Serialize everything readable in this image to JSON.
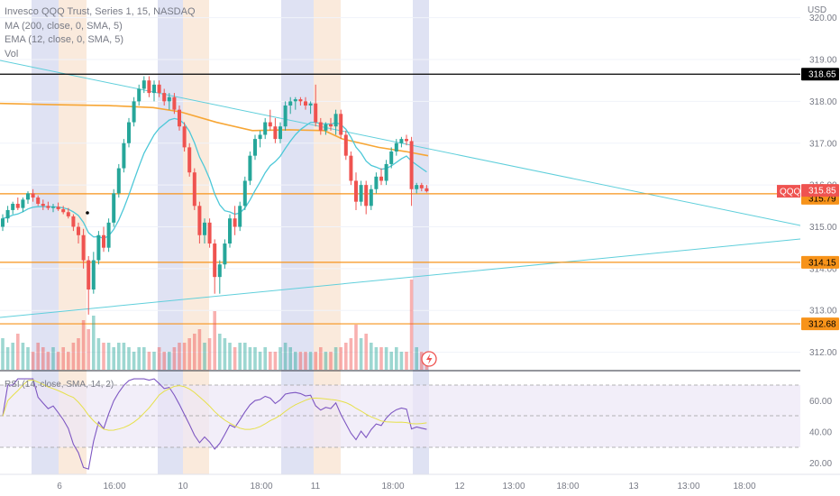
{
  "legend": {
    "title": "Invesco QQQ Trust, Series 1, 15, NASDAQ",
    "ma": "MA (200, close, 0, SMA, 5)",
    "ema": "EMA (12, close, 0, SMA, 5)",
    "vol": "Vol"
  },
  "rsi_legend": "RSI (14, close, SMA, 14, 2)",
  "currency": "USD",
  "ticker_badge": "QQQ",
  "colors": {
    "up": "#26a69a",
    "down": "#ef5350",
    "ma": "#f7a635",
    "ema": "#4dc8d8",
    "trendline": "#60cfdb",
    "hline_orange": "#f7931a",
    "hline_black": "#000000",
    "rsi": "#7e57c2",
    "rsi_ma": "#e6e04a",
    "session_blue": "#c5cae9",
    "session_orange": "#f5d9c0"
  },
  "chart_data": {
    "type": "candlestick",
    "symbol": "QQQ",
    "interval": "15",
    "exchange": "NASDAQ",
    "y_range": [
      311.6,
      320.6
    ],
    "y_ticks": [
      312.0,
      313.0,
      314.0,
      315.0,
      316.0,
      317.0,
      318.0,
      319.0,
      320.0
    ],
    "x_ticks": [
      "6",
      "16:00",
      "10",
      "18:00",
      "11",
      "18:00",
      "12",
      "13:00",
      "18:00",
      "13",
      "13:00",
      "18:00"
    ],
    "last_price": "315.85",
    "price_labels": [
      "318.65",
      "315.79",
      "314.15",
      "312.68"
    ],
    "horizontal_lines": [
      {
        "value": 318.65,
        "color": "black"
      },
      {
        "value": 315.79,
        "color": "orange"
      },
      {
        "value": 314.15,
        "color": "orange"
      },
      {
        "value": 312.68,
        "color": "orange"
      }
    ],
    "candles": [
      [
        315.0,
        315.3,
        314.9,
        315.2
      ],
      [
        315.2,
        315.5,
        315.1,
        315.4
      ],
      [
        315.4,
        315.6,
        315.3,
        315.55
      ],
      [
        315.55,
        315.7,
        315.4,
        315.45
      ],
      [
        315.45,
        315.7,
        315.35,
        315.65
      ],
      [
        315.65,
        315.85,
        315.55,
        315.8
      ],
      [
        315.8,
        315.9,
        315.6,
        315.7
      ],
      [
        315.7,
        315.75,
        315.5,
        315.55
      ],
      [
        315.55,
        315.65,
        315.4,
        315.5
      ],
      [
        315.5,
        315.6,
        315.4,
        315.45
      ],
      [
        315.45,
        315.55,
        315.35,
        315.48
      ],
      [
        315.48,
        315.58,
        315.38,
        315.42
      ],
      [
        315.42,
        315.5,
        315.3,
        315.35
      ],
      [
        315.35,
        315.45,
        315.2,
        315.25
      ],
      [
        315.25,
        315.3,
        314.9,
        315.0
      ],
      [
        315.0,
        315.1,
        314.6,
        314.8
      ],
      [
        314.8,
        314.95,
        314.0,
        314.2
      ],
      [
        314.2,
        314.3,
        312.9,
        313.5
      ],
      [
        313.5,
        314.4,
        313.4,
        314.2
      ],
      [
        314.2,
        314.9,
        314.1,
        314.8
      ],
      [
        314.8,
        315.0,
        314.4,
        314.5
      ],
      [
        314.5,
        315.2,
        314.4,
        315.1
      ],
      [
        315.1,
        315.9,
        315.0,
        315.8
      ],
      [
        315.8,
        316.5,
        315.7,
        316.4
      ],
      [
        316.4,
        317.1,
        316.3,
        317.0
      ],
      [
        317.0,
        317.6,
        316.9,
        317.5
      ],
      [
        317.5,
        318.1,
        317.4,
        318.0
      ],
      [
        318.0,
        318.4,
        317.9,
        318.3
      ],
      [
        318.3,
        318.6,
        318.2,
        318.5
      ],
      [
        318.5,
        318.6,
        318.1,
        318.2
      ],
      [
        318.2,
        318.5,
        318.0,
        318.4
      ],
      [
        318.4,
        318.5,
        318.1,
        318.2
      ],
      [
        318.2,
        318.3,
        317.9,
        318.0
      ],
      [
        318.0,
        318.2,
        317.8,
        318.1
      ],
      [
        318.1,
        318.2,
        317.7,
        317.8
      ],
      [
        317.8,
        317.9,
        317.3,
        317.4
      ],
      [
        317.4,
        317.5,
        316.8,
        316.9
      ],
      [
        316.9,
        317.0,
        316.2,
        316.3
      ],
      [
        316.3,
        316.4,
        315.4,
        315.5
      ],
      [
        315.5,
        315.6,
        314.6,
        314.8
      ],
      [
        314.8,
        315.2,
        314.6,
        315.1
      ],
      [
        315.1,
        315.2,
        314.5,
        314.6
      ],
      [
        314.6,
        314.7,
        313.4,
        313.8
      ],
      [
        313.8,
        314.2,
        313.4,
        314.1
      ],
      [
        314.1,
        314.7,
        314.0,
        314.6
      ],
      [
        314.6,
        315.3,
        314.5,
        315.2
      ],
      [
        315.2,
        315.5,
        314.8,
        315.0
      ],
      [
        315.0,
        315.6,
        314.9,
        315.5
      ],
      [
        315.5,
        316.2,
        315.4,
        316.1
      ],
      [
        316.1,
        316.8,
        316.0,
        316.7
      ],
      [
        316.7,
        317.2,
        316.6,
        317.1
      ],
      [
        317.1,
        317.3,
        316.9,
        317.2
      ],
      [
        317.2,
        317.6,
        317.1,
        317.5
      ],
      [
        317.5,
        317.8,
        317.3,
        317.4
      ],
      [
        317.4,
        317.6,
        317.0,
        317.1
      ],
      [
        317.1,
        317.5,
        317.0,
        317.4
      ],
      [
        317.4,
        318.0,
        317.3,
        317.9
      ],
      [
        317.9,
        318.1,
        317.7,
        318.0
      ],
      [
        318.0,
        318.1,
        317.8,
        318.05
      ],
      [
        318.05,
        318.1,
        317.9,
        318.0
      ],
      [
        318.0,
        318.1,
        317.8,
        317.9
      ],
      [
        317.9,
        318.0,
        317.7,
        317.95
      ],
      [
        317.95,
        318.4,
        317.4,
        317.5
      ],
      [
        317.5,
        317.6,
        317.2,
        317.3
      ],
      [
        317.3,
        317.5,
        317.2,
        317.45
      ],
      [
        317.45,
        317.6,
        317.3,
        317.4
      ],
      [
        317.4,
        317.8,
        317.2,
        317.7
      ],
      [
        317.7,
        317.8,
        317.1,
        317.2
      ],
      [
        317.2,
        317.3,
        316.6,
        316.7
      ],
      [
        316.7,
        316.8,
        316.0,
        316.1
      ],
      [
        316.1,
        316.3,
        315.4,
        315.6
      ],
      [
        315.6,
        316.1,
        315.5,
        316.0
      ],
      [
        316.0,
        316.1,
        315.3,
        315.5
      ],
      [
        315.5,
        316.0,
        315.4,
        315.9
      ],
      [
        315.9,
        316.3,
        315.8,
        316.2
      ],
      [
        316.2,
        316.4,
        316.0,
        316.1
      ],
      [
        316.1,
        316.6,
        316.0,
        316.5
      ],
      [
        316.5,
        316.9,
        316.4,
        316.8
      ],
      [
        316.8,
        317.1,
        316.7,
        317.0
      ],
      [
        317.0,
        317.15,
        316.9,
        317.1
      ],
      [
        317.1,
        317.2,
        316.95,
        317.05
      ],
      [
        317.05,
        317.15,
        315.5,
        315.9
      ],
      [
        315.9,
        316.05,
        315.8,
        316.0
      ],
      [
        316.0,
        316.05,
        315.85,
        315.92
      ],
      [
        315.92,
        316.0,
        315.82,
        315.85
      ]
    ],
    "volume_relative": [
      0.35,
      0.25,
      0.3,
      0.4,
      0.3,
      0.25,
      0.2,
      0.3,
      0.25,
      0.2,
      0.25,
      0.2,
      0.25,
      0.2,
      0.3,
      0.35,
      0.55,
      0.45,
      0.6,
      0.35,
      0.3,
      0.3,
      0.25,
      0.3,
      0.3,
      0.25,
      0.2,
      0.25,
      0.25,
      0.2,
      0.2,
      0.25,
      0.2,
      0.2,
      0.25,
      0.3,
      0.3,
      0.35,
      0.4,
      0.45,
      0.3,
      0.35,
      0.65,
      0.4,
      0.35,
      0.3,
      0.25,
      0.3,
      0.3,
      0.25,
      0.25,
      0.2,
      0.25,
      0.2,
      0.2,
      0.25,
      0.3,
      0.25,
      0.2,
      0.2,
      0.2,
      0.2,
      0.2,
      0.25,
      0.2,
      0.2,
      0.25,
      0.25,
      0.3,
      0.35,
      0.5,
      0.35,
      0.4,
      0.3,
      0.25,
      0.25,
      0.25,
      0.2,
      0.25,
      0.2,
      0.2,
      1.0,
      0.25,
      0.2,
      0.15
    ],
    "rsi": {
      "y_range": [
        15,
        75
      ],
      "y_ticks": [
        20.0,
        40.0,
        60.0
      ],
      "band": [
        30,
        70
      ],
      "midline": 50
    }
  }
}
